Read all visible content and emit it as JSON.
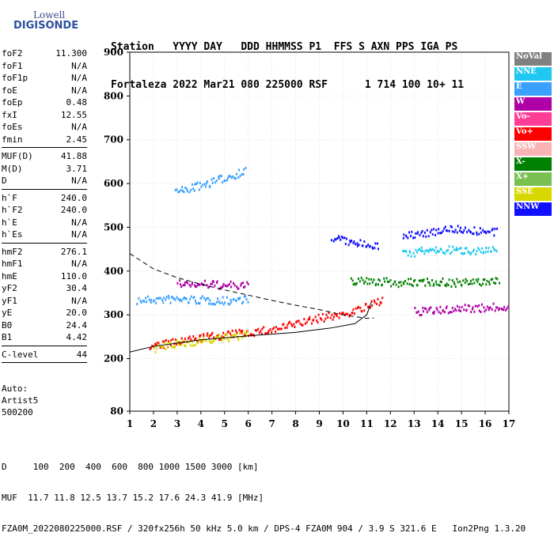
{
  "logo": {
    "top": "Lowell",
    "bottom": "DIGISONDE"
  },
  "header": {
    "line1": "Station   YYYY DAY   DDD HHMMSS P1  FFS S AXN PPS IGA PS",
    "line2": "Fortaleza 2022 Mar21 080 225000 RSF      1 714 100 10+ 11"
  },
  "params": [
    {
      "name": "foF2",
      "value": "11.300"
    },
    {
      "name": "foF1",
      "value": "N/A"
    },
    {
      "name": "foF1p",
      "value": "N/A"
    },
    {
      "name": "foE",
      "value": "N/A"
    },
    {
      "name": "foEp",
      "value": "0.48"
    },
    {
      "name": "fxI",
      "value": "12.55"
    },
    {
      "name": "foEs",
      "value": "N/A"
    },
    {
      "name": "fmin",
      "value": "2.45"
    },
    {
      "sep": true
    },
    {
      "name": "MUF(D)",
      "value": "41.88"
    },
    {
      "name": "M(D)",
      "value": "3.71"
    },
    {
      "name": "D",
      "value": "N/A"
    },
    {
      "sep": true
    },
    {
      "name": "h`F",
      "value": "240.0"
    },
    {
      "name": "h`F2",
      "value": "240.0"
    },
    {
      "name": "h`E",
      "value": "N/A"
    },
    {
      "name": "h`Es",
      "value": "N/A"
    },
    {
      "sep": true
    },
    {
      "name": "hmF2",
      "value": "276.1"
    },
    {
      "name": "hmF1",
      "value": "N/A"
    },
    {
      "name": "hmE",
      "value": "110.0"
    },
    {
      "name": "yF2",
      "value": "30.4"
    },
    {
      "name": "yF1",
      "value": "N/A"
    },
    {
      "name": "yE",
      "value": "20.0"
    },
    {
      "name": "B0",
      "value": "24.4"
    },
    {
      "name": "B1",
      "value": "4.42"
    },
    {
      "sep": true
    },
    {
      "name": "C-level",
      "value": "44"
    },
    {
      "sep": true
    }
  ],
  "auto": {
    "line1": "Auto:",
    "line2": "Artist5",
    "line3": "500200"
  },
  "legend": [
    {
      "label": "NoVal",
      "color": "#808080"
    },
    {
      "label": "NNE",
      "color": "#1ec8f0"
    },
    {
      "label": "E",
      "color": "#3aa0ff"
    },
    {
      "label": "W",
      "color": "#b000a8"
    },
    {
      "label": "Vo-",
      "color": "#ff3c96"
    },
    {
      "label": "Vo+",
      "color": "#ff0000"
    },
    {
      "label": "SSW",
      "color": "#f8b4b4"
    },
    {
      "label": "X-",
      "color": "#008000"
    },
    {
      "label": "X+",
      "color": "#78c050"
    },
    {
      "label": "SSE",
      "color": "#d8d800"
    },
    {
      "label": "NNW",
      "color": "#1010ff"
    }
  ],
  "footer": {
    "line1": "D     100  200  400  600  800 1000 1500 3000 [km]",
    "line2": "MUF  11.7 11.8 12.5 13.7 15.2 17.6 24.3 41.9 [MHz]",
    "line3": "FZA0M_2022080225000.RSF / 320fx256h 50 kHz 5.0 km / DPS-4 FZA0M 904 / 3.9 S 321.6 E   Ion2Png 1.3.20"
  },
  "chart_data": {
    "type": "scatter",
    "title": "",
    "xlabel": "",
    "ylabel": "",
    "xlim": [
      1,
      17
    ],
    "ylim": [
      80,
      900
    ],
    "x_ticks": [
      1,
      2,
      3,
      4,
      5,
      6,
      7,
      8,
      9,
      10,
      11,
      12,
      13,
      14,
      15,
      16,
      17
    ],
    "y_ticks": [
      80,
      200,
      300,
      400,
      500,
      600,
      700,
      800,
      900
    ],
    "grid": true,
    "traces": [
      {
        "name": "E",
        "color": "#3aa0ff",
        "segments": [
          [
            [
              1.3,
              335
            ],
            [
              2.0,
              337
            ],
            [
              3.0,
              338
            ],
            [
              4.0,
              336
            ],
            [
              5.0,
              334
            ],
            [
              6.0,
              340
            ]
          ],
          [
            [
              2.9,
              582
            ],
            [
              4.0,
              598
            ],
            [
              5.0,
              615
            ],
            [
              5.9,
              632
            ]
          ]
        ]
      },
      {
        "name": "Vo+",
        "color": "#ff0000",
        "segments": [
          [
            [
              1.8,
              230
            ],
            [
              3.0,
              240
            ],
            [
              4.0,
              250
            ],
            [
              5.0,
              256
            ],
            [
              6.0,
              262
            ],
            [
              7.0,
              268
            ],
            [
              8.0,
              282
            ],
            [
              9.0,
              295
            ],
            [
              10.0,
              304
            ],
            [
              11.0,
              320
            ],
            [
              11.7,
              340
            ]
          ]
        ]
      },
      {
        "name": "SSE",
        "color": "#d8d800",
        "segments": [
          [
            [
              2.0,
              226
            ],
            [
              3.0,
              235
            ],
            [
              4.0,
              244
            ],
            [
              5.0,
              250
            ],
            [
              6.0,
              256
            ]
          ]
        ]
      },
      {
        "name": "W",
        "color": "#b000a8",
        "segments": [
          [
            [
              3.0,
              375
            ],
            [
              4.0,
              372
            ],
            [
              5.0,
              370
            ],
            [
              6.0,
              368
            ]
          ],
          [
            [
              13.0,
              310
            ],
            [
              14.0,
              312
            ],
            [
              15.0,
              318
            ],
            [
              16.0,
              318
            ],
            [
              17.0,
              322
            ]
          ]
        ]
      },
      {
        "name": "NNE",
        "color": "#1ec8f0",
        "segments": [
          [
            [
              12.5,
              440
            ],
            [
              13.5,
              450
            ],
            [
              14.5,
              450
            ],
            [
              15.5,
              450
            ],
            [
              16.5,
              448
            ]
          ]
        ]
      },
      {
        "name": "X-",
        "color": "#008000",
        "segments": [
          [
            [
              10.3,
              380
            ],
            [
              11.0,
              380
            ],
            [
              12.5,
              375
            ],
            [
              13.5,
              378
            ],
            [
              15.0,
              375
            ],
            [
              16.6,
              380
            ]
          ]
        ]
      },
      {
        "name": "NNW",
        "color": "#1010ff",
        "segments": [
          [
            [
              9.5,
              480
            ],
            [
              10.5,
              465
            ],
            [
              11.5,
              462
            ]
          ],
          [
            [
              12.5,
              480
            ],
            [
              14.5,
              500
            ],
            [
              16.5,
              490
            ]
          ]
        ]
      }
    ],
    "profile": [
      [
        1.0,
        215
      ],
      [
        2.0,
        228
      ],
      [
        4.0,
        243
      ],
      [
        6.0,
        252
      ],
      [
        8.0,
        260
      ],
      [
        9.5,
        270
      ],
      [
        10.5,
        280
      ],
      [
        11.0,
        300
      ],
      [
        11.2,
        330
      ]
    ],
    "model": [
      [
        1.0,
        440
      ],
      [
        2.0,
        405
      ],
      [
        3.0,
        385
      ],
      [
        4.0,
        370
      ],
      [
        5.0,
        357
      ],
      [
        6.0,
        345
      ],
      [
        7.0,
        333
      ],
      [
        8.0,
        322
      ],
      [
        9.0,
        312
      ],
      [
        10.0,
        300
      ],
      [
        11.0,
        292
      ],
      [
        11.3,
        293
      ]
    ]
  }
}
